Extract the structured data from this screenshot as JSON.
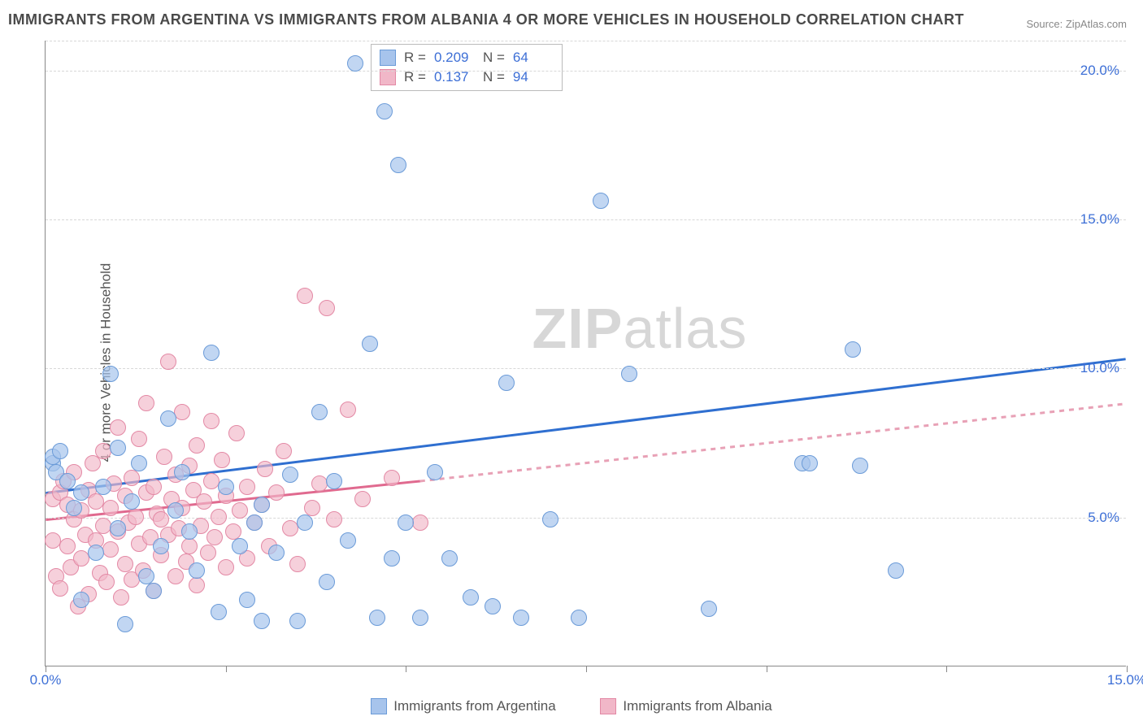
{
  "title": "IMMIGRANTS FROM ARGENTINA VS IMMIGRANTS FROM ALBANIA 4 OR MORE VEHICLES IN HOUSEHOLD CORRELATION CHART",
  "source": "Source: ZipAtlas.com",
  "ylabel": "4 or more Vehicles in Household",
  "watermark_part1": "ZIP",
  "watermark_part2": "atlas",
  "series": [
    {
      "name": "Immigrants from Argentina",
      "fill": "#a7c4ecb3",
      "stroke": "#6b9bd8",
      "trend_color": "#2f6fd0",
      "trend_dash": "none",
      "r_label": "R =",
      "r_value": "0.209",
      "n_label": "N =",
      "n_value": "64",
      "trend": {
        "x1": 0,
        "y1": 5.8,
        "x2": 15,
        "y2": 10.3
      },
      "points": [
        [
          0.1,
          6.8
        ],
        [
          0.1,
          7.0
        ],
        [
          0.15,
          6.5
        ],
        [
          0.2,
          7.2
        ],
        [
          0.3,
          6.2
        ],
        [
          0.4,
          5.3
        ],
        [
          0.5,
          5.8
        ],
        [
          0.5,
          2.2
        ],
        [
          0.7,
          3.8
        ],
        [
          0.8,
          6.0
        ],
        [
          0.9,
          9.8
        ],
        [
          1.0,
          7.3
        ],
        [
          1.0,
          4.6
        ],
        [
          1.1,
          1.4
        ],
        [
          1.2,
          5.5
        ],
        [
          1.3,
          6.8
        ],
        [
          1.4,
          3.0
        ],
        [
          1.5,
          2.5
        ],
        [
          1.6,
          4.0
        ],
        [
          1.7,
          8.3
        ],
        [
          1.8,
          5.2
        ],
        [
          1.9,
          6.5
        ],
        [
          2.0,
          4.5
        ],
        [
          2.1,
          3.2
        ],
        [
          2.3,
          10.5
        ],
        [
          2.4,
          1.8
        ],
        [
          2.5,
          6.0
        ],
        [
          2.7,
          4.0
        ],
        [
          2.8,
          2.2
        ],
        [
          2.9,
          4.8
        ],
        [
          3.0,
          1.5
        ],
        [
          3.0,
          5.4
        ],
        [
          3.2,
          3.8
        ],
        [
          3.4,
          6.4
        ],
        [
          3.5,
          1.5
        ],
        [
          3.6,
          4.8
        ],
        [
          3.8,
          8.5
        ],
        [
          3.9,
          2.8
        ],
        [
          4.0,
          6.2
        ],
        [
          4.2,
          4.2
        ],
        [
          4.3,
          20.2
        ],
        [
          4.5,
          10.8
        ],
        [
          4.6,
          1.6
        ],
        [
          4.7,
          18.6
        ],
        [
          4.8,
          3.6
        ],
        [
          4.9,
          16.8
        ],
        [
          5.0,
          4.8
        ],
        [
          5.2,
          1.6
        ],
        [
          5.4,
          6.5
        ],
        [
          5.6,
          3.6
        ],
        [
          5.9,
          2.3
        ],
        [
          6.2,
          2.0
        ],
        [
          6.4,
          9.5
        ],
        [
          6.6,
          1.6
        ],
        [
          7.0,
          4.9
        ],
        [
          7.4,
          1.6
        ],
        [
          7.7,
          15.6
        ],
        [
          8.1,
          9.8
        ],
        [
          9.2,
          1.9
        ],
        [
          10.5,
          6.8
        ],
        [
          10.6,
          6.8
        ],
        [
          11.2,
          10.6
        ],
        [
          11.3,
          6.7
        ],
        [
          11.8,
          3.2
        ]
      ]
    },
    {
      "name": "Immigrants from Albania",
      "fill": "#f1b7c8a8",
      "stroke": "#e389a5",
      "trend_solid_color": "#e06a8f",
      "trend_dash_color": "#e8a1b6",
      "r_label": "R =",
      "r_value": "0.137",
      "n_label": "N =",
      "n_value": "94",
      "trend_solid": {
        "x1": 0,
        "y1": 4.9,
        "x2": 5.2,
        "y2": 6.2
      },
      "trend_dash": {
        "x1": 5.2,
        "y1": 6.2,
        "x2": 15,
        "y2": 8.8
      },
      "points": [
        [
          0.1,
          5.6
        ],
        [
          0.1,
          4.2
        ],
        [
          0.15,
          3.0
        ],
        [
          0.2,
          5.8
        ],
        [
          0.2,
          2.6
        ],
        [
          0.25,
          6.2
        ],
        [
          0.3,
          4.0
        ],
        [
          0.3,
          5.4
        ],
        [
          0.35,
          3.3
        ],
        [
          0.4,
          4.9
        ],
        [
          0.4,
          6.5
        ],
        [
          0.45,
          2.0
        ],
        [
          0.5,
          5.2
        ],
        [
          0.5,
          3.6
        ],
        [
          0.55,
          4.4
        ],
        [
          0.6,
          5.9
        ],
        [
          0.6,
          2.4
        ],
        [
          0.65,
          6.8
        ],
        [
          0.7,
          4.2
        ],
        [
          0.7,
          5.5
        ],
        [
          0.75,
          3.1
        ],
        [
          0.8,
          4.7
        ],
        [
          0.8,
          7.2
        ],
        [
          0.85,
          2.8
        ],
        [
          0.9,
          5.3
        ],
        [
          0.9,
          3.9
        ],
        [
          0.95,
          6.1
        ],
        [
          1.0,
          4.5
        ],
        [
          1.0,
          8.0
        ],
        [
          1.05,
          2.3
        ],
        [
          1.1,
          5.7
        ],
        [
          1.1,
          3.4
        ],
        [
          1.15,
          4.8
        ],
        [
          1.2,
          6.3
        ],
        [
          1.2,
          2.9
        ],
        [
          1.25,
          5.0
        ],
        [
          1.3,
          4.1
        ],
        [
          1.3,
          7.6
        ],
        [
          1.35,
          3.2
        ],
        [
          1.4,
          5.8
        ],
        [
          1.4,
          8.8
        ],
        [
          1.45,
          4.3
        ],
        [
          1.5,
          6.0
        ],
        [
          1.5,
          2.5
        ],
        [
          1.55,
          5.1
        ],
        [
          1.6,
          3.7
        ],
        [
          1.6,
          4.9
        ],
        [
          1.65,
          7.0
        ],
        [
          1.7,
          10.2
        ],
        [
          1.7,
          4.4
        ],
        [
          1.75,
          5.6
        ],
        [
          1.8,
          3.0
        ],
        [
          1.8,
          6.4
        ],
        [
          1.85,
          4.6
        ],
        [
          1.9,
          8.5
        ],
        [
          1.9,
          5.3
        ],
        [
          1.95,
          3.5
        ],
        [
          2.0,
          6.7
        ],
        [
          2.0,
          4.0
        ],
        [
          2.05,
          5.9
        ],
        [
          2.1,
          2.7
        ],
        [
          2.1,
          7.4
        ],
        [
          2.15,
          4.7
        ],
        [
          2.2,
          5.5
        ],
        [
          2.25,
          3.8
        ],
        [
          2.3,
          6.2
        ],
        [
          2.3,
          8.2
        ],
        [
          2.35,
          4.3
        ],
        [
          2.4,
          5.0
        ],
        [
          2.45,
          6.9
        ],
        [
          2.5,
          3.3
        ],
        [
          2.5,
          5.7
        ],
        [
          2.6,
          4.5
        ],
        [
          2.65,
          7.8
        ],
        [
          2.7,
          5.2
        ],
        [
          2.8,
          6.0
        ],
        [
          2.8,
          3.6
        ],
        [
          2.9,
          4.8
        ],
        [
          3.0,
          5.4
        ],
        [
          3.05,
          6.6
        ],
        [
          3.1,
          4.0
        ],
        [
          3.2,
          5.8
        ],
        [
          3.3,
          7.2
        ],
        [
          3.4,
          4.6
        ],
        [
          3.5,
          3.4
        ],
        [
          3.6,
          12.4
        ],
        [
          3.7,
          5.3
        ],
        [
          3.8,
          6.1
        ],
        [
          3.9,
          12.0
        ],
        [
          4.0,
          4.9
        ],
        [
          4.2,
          8.6
        ],
        [
          4.4,
          5.6
        ],
        [
          4.8,
          6.3
        ],
        [
          5.2,
          4.8
        ]
      ]
    }
  ],
  "axes": {
    "xlim": [
      0,
      15
    ],
    "ylim": [
      0,
      21
    ],
    "y_gridlines": [
      5,
      10,
      15,
      20,
      21
    ],
    "y_tick_labels": [
      "5.0%",
      "10.0%",
      "15.0%",
      "20.0%"
    ],
    "x_ticks": [
      0,
      2.5,
      5,
      7.5,
      10,
      12.5,
      15
    ],
    "x_tick_labels_shown": {
      "0": "0.0%",
      "15": "15.0%"
    }
  },
  "style": {
    "point_radius": 10,
    "swatch_argentina": {
      "fill": "#a7c4ec",
      "stroke": "#6b9bd8"
    },
    "swatch_albania": {
      "fill": "#f1b7c8",
      "stroke": "#e389a5"
    },
    "trend_width": 3
  }
}
